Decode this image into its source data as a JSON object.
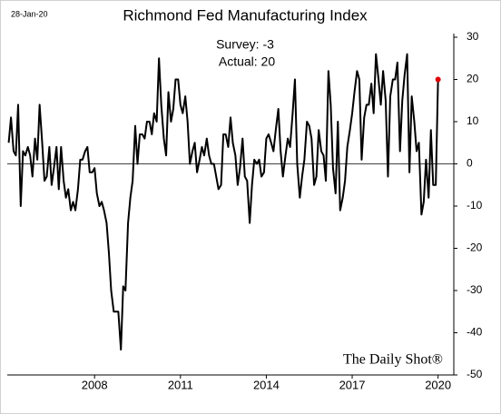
{
  "chart_data": {
    "type": "line",
    "title": "Richmond Fed Manufacturing Index",
    "date_label": "28-Jan-20",
    "annotations": [
      "Survey: -3",
      "Actual:  20"
    ],
    "watermark": "The Daily Shot®",
    "x": [
      2005,
      2005.08,
      2005.17,
      2005.25,
      2005.33,
      2005.42,
      2005.5,
      2005.58,
      2005.67,
      2005.75,
      2005.83,
      2005.92,
      2006,
      2006.08,
      2006.17,
      2006.25,
      2006.33,
      2006.42,
      2006.5,
      2006.58,
      2006.67,
      2006.75,
      2006.83,
      2006.92,
      2007,
      2007.08,
      2007.17,
      2007.25,
      2007.33,
      2007.42,
      2007.5,
      2007.58,
      2007.67,
      2007.75,
      2007.83,
      2007.92,
      2008,
      2008.08,
      2008.17,
      2008.25,
      2008.33,
      2008.42,
      2008.5,
      2008.58,
      2008.67,
      2008.75,
      2008.83,
      2008.92,
      2009,
      2009.08,
      2009.17,
      2009.25,
      2009.33,
      2009.42,
      2009.5,
      2009.58,
      2009.67,
      2009.75,
      2009.83,
      2009.92,
      2010,
      2010.08,
      2010.17,
      2010.25,
      2010.33,
      2010.42,
      2010.5,
      2010.58,
      2010.67,
      2010.75,
      2010.83,
      2010.92,
      2011,
      2011.08,
      2011.17,
      2011.25,
      2011.33,
      2011.42,
      2011.5,
      2011.58,
      2011.67,
      2011.75,
      2011.83,
      2011.92,
      2012,
      2012.08,
      2012.17,
      2012.25,
      2012.33,
      2012.42,
      2012.5,
      2012.58,
      2012.67,
      2012.75,
      2012.83,
      2012.92,
      2013,
      2013.08,
      2013.17,
      2013.25,
      2013.33,
      2013.42,
      2013.5,
      2013.58,
      2013.67,
      2013.75,
      2013.83,
      2013.92,
      2014,
      2014.08,
      2014.17,
      2014.25,
      2014.33,
      2014.42,
      2014.5,
      2014.58,
      2014.67,
      2014.75,
      2014.83,
      2014.92,
      2015,
      2015.08,
      2015.17,
      2015.25,
      2015.33,
      2015.42,
      2015.5,
      2015.58,
      2015.67,
      2015.75,
      2015.83,
      2015.92,
      2016,
      2016.08,
      2016.17,
      2016.25,
      2016.33,
      2016.42,
      2016.5,
      2016.58,
      2016.67,
      2016.75,
      2016.83,
      2016.92,
      2017,
      2017.08,
      2017.17,
      2017.25,
      2017.33,
      2017.42,
      2017.5,
      2017.58,
      2017.67,
      2017.75,
      2017.83,
      2017.92,
      2018,
      2018.08,
      2018.17,
      2018.25,
      2018.33,
      2018.42,
      2018.5,
      2018.58,
      2018.67,
      2018.75,
      2018.83,
      2018.92,
      2019,
      2019.08,
      2019.17,
      2019.25,
      2019.33,
      2019.42,
      2019.5,
      2019.58,
      2019.67,
      2019.75,
      2019.83,
      2019.92,
      2020
    ],
    "series": [
      {
        "color": "#000000",
        "last_point_color": "#e00000",
        "values": [
          5,
          11,
          3,
          2,
          14,
          -10,
          3,
          2,
          4,
          2,
          -3,
          6,
          1,
          14,
          5,
          -4,
          -3,
          4,
          -5,
          -1,
          4,
          -6,
          4,
          -4,
          -8,
          -6,
          -11,
          -9,
          -11,
          -6,
          1,
          1,
          3,
          4,
          -2,
          -2,
          -1,
          -7,
          -10,
          -9,
          -11,
          -14,
          -21,
          -30,
          -35,
          -35,
          -35,
          -44,
          -29,
          -30,
          -14,
          -8,
          -4,
          9,
          0,
          7,
          7,
          6,
          10,
          10,
          7,
          12,
          10,
          25,
          14,
          6,
          2,
          17,
          10,
          13,
          20,
          20,
          14,
          12,
          16,
          10,
          0,
          3,
          5,
          -2,
          1,
          4,
          2,
          6,
          2,
          0,
          0,
          -3,
          -6,
          -5,
          7,
          7,
          4,
          11,
          5,
          2,
          -5,
          -1,
          6,
          -3,
          -4,
          -14,
          -5,
          1,
          0,
          1,
          -3,
          -2,
          6,
          7,
          5,
          3,
          8,
          13,
          3,
          -3,
          2,
          6,
          4,
          12,
          20,
          0,
          -8,
          -3,
          1,
          10,
          9,
          6,
          -5,
          -3,
          8,
          3,
          2,
          -4,
          22,
          14,
          -1,
          -7,
          10,
          -11,
          -8,
          -4,
          4,
          8,
          12,
          17,
          22,
          20,
          1,
          11,
          14,
          14,
          19,
          12,
          26,
          20,
          14,
          22,
          15,
          -3,
          16,
          20,
          20,
          24,
          3,
          15,
          21,
          26,
          -2,
          16,
          10,
          3,
          5,
          -12,
          -9,
          1,
          -8,
          8,
          -5,
          -5,
          20
        ]
      }
    ],
    "xlim": [
      2004.95,
      2020.55
    ],
    "xticks": [
      2008,
      2011,
      2014,
      2017,
      2020
    ],
    "ylim": [
      -50,
      30
    ],
    "yticks": [
      -50,
      -40,
      -30,
      -20,
      -10,
      0,
      10,
      20,
      30
    ],
    "zero_line": true
  }
}
